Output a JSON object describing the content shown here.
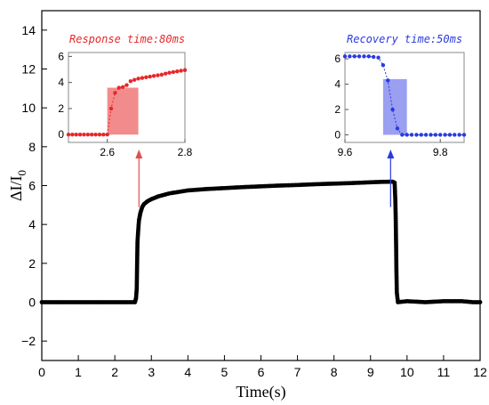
{
  "chart_data": {
    "main": {
      "type": "scatter",
      "xlabel": "Time(s)",
      "ylabel_base": "ΔI/I",
      "ylabel_sub": "0",
      "xlim": [
        0,
        12
      ],
      "ylim": [
        -3,
        15
      ],
      "xticks": [
        0,
        1,
        2,
        3,
        4,
        5,
        6,
        7,
        8,
        9,
        10,
        11,
        12
      ],
      "yticks": [
        -2,
        0,
        2,
        4,
        6,
        8,
        10,
        12,
        14
      ],
      "grid": false,
      "series": [
        {
          "color": "#000000",
          "points": [
            [
              0.0,
              0.0
            ],
            [
              0.5,
              0.0
            ],
            [
              1.0,
              0.0
            ],
            [
              1.5,
              0.0
            ],
            [
              2.0,
              0.0
            ],
            [
              2.5,
              0.0
            ],
            [
              2.55,
              0.0
            ],
            [
              2.58,
              0.2
            ],
            [
              2.6,
              0.7
            ],
            [
              2.61,
              2.0
            ],
            [
              2.62,
              3.1
            ],
            [
              2.64,
              3.7
            ],
            [
              2.66,
              4.2
            ],
            [
              2.7,
              4.6
            ],
            [
              2.75,
              4.9
            ],
            [
              2.8,
              5.05
            ],
            [
              2.9,
              5.2
            ],
            [
              3.0,
              5.3
            ],
            [
              3.2,
              5.45
            ],
            [
              3.5,
              5.6
            ],
            [
              4.0,
              5.75
            ],
            [
              4.5,
              5.82
            ],
            [
              5.0,
              5.87
            ],
            [
              5.5,
              5.92
            ],
            [
              6.0,
              5.96
            ],
            [
              6.5,
              6.0
            ],
            [
              7.0,
              6.03
            ],
            [
              7.5,
              6.07
            ],
            [
              8.0,
              6.1
            ],
            [
              8.5,
              6.13
            ],
            [
              9.0,
              6.17
            ],
            [
              9.3,
              6.19
            ],
            [
              9.6,
              6.2
            ],
            [
              9.66,
              6.15
            ],
            [
              9.68,
              5.2
            ],
            [
              9.69,
              4.3
            ],
            [
              9.7,
              3.0
            ],
            [
              9.71,
              1.5
            ],
            [
              9.72,
              0.5
            ],
            [
              9.75,
              0.0
            ],
            [
              10.0,
              0.05
            ],
            [
              10.5,
              0.0
            ],
            [
              11.0,
              0.05
            ],
            [
              11.5,
              0.05
            ],
            [
              11.8,
              0.0
            ],
            [
              12.0,
              0.0
            ]
          ]
        }
      ],
      "markers": [
        {
          "x": 2.66,
          "color": "#e05050"
        },
        {
          "x": 9.72,
          "color": "#2a3adf"
        }
      ]
    },
    "insets": [
      {
        "annotation": "Response time:80ms",
        "color": "#e8262a",
        "highlight_color": "#f07878",
        "xlim": [
          2.5,
          2.8
        ],
        "ylim": [
          -0.6,
          6.3
        ],
        "xticks": [
          2.6,
          2.8
        ],
        "yticks": [
          0,
          2,
          4,
          6
        ],
        "highlight_x": [
          2.6,
          2.68
        ],
        "highlight_y": [
          0,
          3.6
        ],
        "points": [
          [
            2.5,
            0.0
          ],
          [
            2.51,
            0.0
          ],
          [
            2.52,
            0.0
          ],
          [
            2.53,
            0.0
          ],
          [
            2.54,
            0.0
          ],
          [
            2.55,
            0.0
          ],
          [
            2.56,
            0.0
          ],
          [
            2.57,
            0.0
          ],
          [
            2.58,
            0.0
          ],
          [
            2.59,
            0.0
          ],
          [
            2.6,
            0.0
          ],
          [
            2.61,
            2.0
          ],
          [
            2.62,
            3.2
          ],
          [
            2.63,
            3.6
          ],
          [
            2.64,
            3.65
          ],
          [
            2.65,
            3.8
          ],
          [
            2.66,
            4.1
          ],
          [
            2.67,
            4.2
          ],
          [
            2.68,
            4.3
          ],
          [
            2.69,
            4.35
          ],
          [
            2.7,
            4.4
          ],
          [
            2.71,
            4.45
          ],
          [
            2.72,
            4.5
          ],
          [
            2.73,
            4.55
          ],
          [
            2.74,
            4.6
          ],
          [
            2.75,
            4.68
          ],
          [
            2.76,
            4.75
          ],
          [
            2.77,
            4.8
          ],
          [
            2.78,
            4.85
          ],
          [
            2.79,
            4.9
          ],
          [
            2.8,
            4.95
          ]
        ]
      },
      {
        "annotation": "Recovery time:50ms",
        "color": "#2a3adf",
        "highlight_color": "#8a8ef0",
        "xlim": [
          9.6,
          9.85
        ],
        "ylim": [
          -0.6,
          6.5
        ],
        "xticks": [
          9.6,
          9.8
        ],
        "yticks": [
          0,
          2,
          4,
          6
        ],
        "highlight_x": [
          9.68,
          9.73
        ],
        "highlight_y": [
          0,
          4.4
        ],
        "points": [
          [
            9.6,
            6.2
          ],
          [
            9.61,
            6.2
          ],
          [
            9.62,
            6.2
          ],
          [
            9.63,
            6.2
          ],
          [
            9.64,
            6.2
          ],
          [
            9.65,
            6.2
          ],
          [
            9.66,
            6.15
          ],
          [
            9.67,
            6.1
          ],
          [
            9.68,
            5.5
          ],
          [
            9.69,
            4.3
          ],
          [
            9.7,
            2.0
          ],
          [
            9.71,
            0.5
          ],
          [
            9.72,
            0.0
          ],
          [
            9.73,
            0.0
          ],
          [
            9.74,
            0.0
          ],
          [
            9.75,
            0.0
          ],
          [
            9.76,
            0.0
          ],
          [
            9.77,
            0.0
          ],
          [
            9.78,
            0.0
          ],
          [
            9.79,
            0.0
          ],
          [
            9.8,
            0.0
          ],
          [
            9.81,
            0.0
          ],
          [
            9.82,
            0.0
          ],
          [
            9.83,
            0.0
          ],
          [
            9.84,
            0.0
          ],
          [
            9.85,
            0.0
          ]
        ]
      }
    ]
  }
}
